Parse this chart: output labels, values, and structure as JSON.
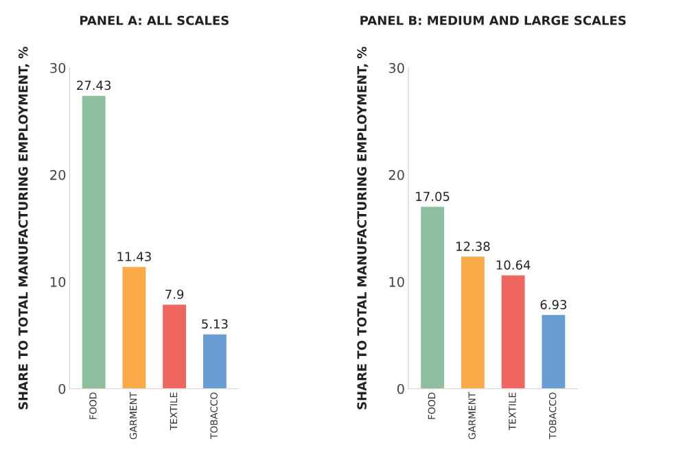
{
  "chart_data": [
    {
      "type": "bar",
      "title": "PANEL A: ALL SCALES",
      "ylabel": "SHARE TO TOTAL MANUFACTURING EMPLOYMENT, %",
      "categories": [
        "FOOD",
        "GARMENT",
        "TEXTILE",
        "TOBACCO"
      ],
      "values": [
        27.43,
        11.43,
        7.9,
        5.13
      ],
      "colors": [
        "#8dbe9e",
        "#f9ab47",
        "#ef665f",
        "#6a9cd4"
      ],
      "ylim": [
        0,
        30
      ],
      "yticks": [
        0,
        10,
        20,
        30
      ],
      "data_labels": true
    },
    {
      "type": "bar",
      "title": "PANEL B: MEDIUM AND LARGE SCALES",
      "ylabel": "SHARE TO TOTAL MANUFACTURING EMPLOYMENT, %",
      "categories": [
        "FOOD",
        "GARMENT",
        "TEXTILE",
        "TOBACCO"
      ],
      "values": [
        17.05,
        12.38,
        10.64,
        6.93
      ],
      "colors": [
        "#8dbe9e",
        "#f9ab47",
        "#ef665f",
        "#6a9cd4"
      ],
      "ylim": [
        0,
        30
      ],
      "yticks": [
        0,
        10,
        20,
        30
      ],
      "data_labels": true
    }
  ]
}
